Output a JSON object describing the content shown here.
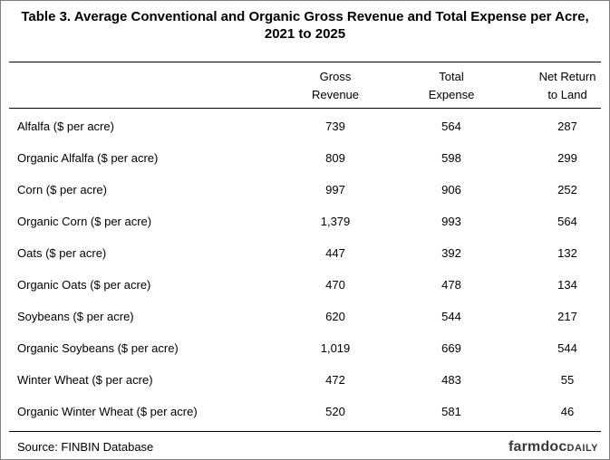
{
  "title_lines": [
    "Table 3.  Average Conventional and Organic Gross Revenue and Total Expense per Acre,",
    "2021 to 2025"
  ],
  "table": {
    "columns": [
      [
        "Gross",
        "Revenue"
      ],
      [
        "Total",
        "Expense"
      ],
      [
        "Net Return",
        "to Land"
      ]
    ],
    "rows": [
      [
        "Alfalfa ($ per acre)",
        "739",
        "564",
        "287"
      ],
      [
        "Organic Alfalfa ($ per acre)",
        "809",
        "598",
        "299"
      ],
      [
        "Corn ($ per acre)",
        "997",
        "906",
        "252"
      ],
      [
        "Organic Corn ($ per acre)",
        "1,379",
        "993",
        "564"
      ],
      [
        "Oats ($ per acre)",
        "447",
        "392",
        "132"
      ],
      [
        "Organic Oats ($ per acre)",
        "470",
        "478",
        "134"
      ],
      [
        "Soybeans ($ per acre)",
        "620",
        "544",
        "217"
      ],
      [
        "Organic Soybeans ($ per acre)",
        "1,019",
        "669",
        "544"
      ],
      [
        "Winter Wheat ($ per acre)",
        "472",
        "483",
        "55"
      ],
      [
        "Organic Winter Wheat ($ per acre)",
        "520",
        "581",
        "46"
      ]
    ]
  },
  "source": "Source:  FINBIN Database",
  "logo": {
    "main": "farmdoc",
    "sub": "DAILY"
  }
}
